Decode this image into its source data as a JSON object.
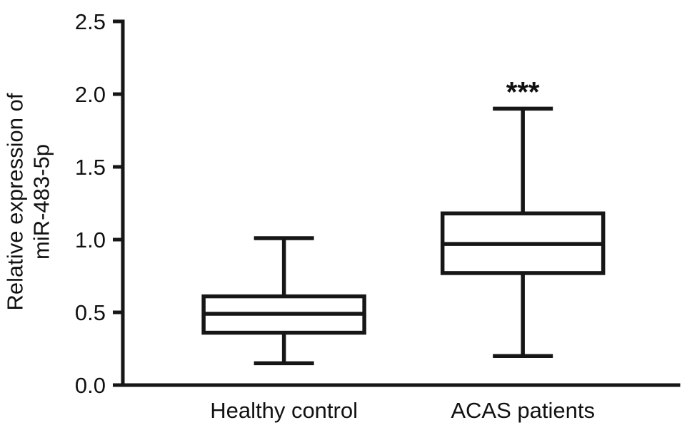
{
  "chart_data": {
    "type": "box",
    "title": "",
    "xlabel": "",
    "ylabel": "Relative expression of miR-483-5p",
    "ylabel_lines": [
      "Relative expression of",
      "miR-483-5p"
    ],
    "categories": [
      "Healthy control",
      "ACAS patients"
    ],
    "ylim": [
      0,
      2.5
    ],
    "yticks": [
      "0.0",
      "0.5",
      "1.0",
      "1.5",
      "2.0",
      "2.5"
    ],
    "grid": false,
    "legend": "none",
    "series": [
      {
        "name": "Healthy control",
        "whisker_min": 0.15,
        "q1": 0.36,
        "median": 0.49,
        "q3": 0.61,
        "whisker_max": 1.01,
        "annotation": ""
      },
      {
        "name": "ACAS patients",
        "whisker_min": 0.2,
        "q1": 0.77,
        "median": 0.97,
        "q3": 1.18,
        "whisker_max": 1.9,
        "annotation": "***"
      }
    ],
    "style": {
      "line_color": "#161616",
      "box_fill": "#ffffff"
    }
  }
}
